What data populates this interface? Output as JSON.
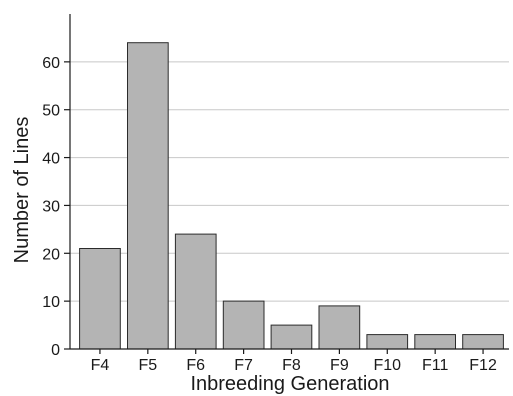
{
  "chart_data": {
    "type": "bar",
    "title": "",
    "xlabel": "Inbreeding Generation",
    "ylabel": "Number of Lines",
    "categories": [
      "F4",
      "F5",
      "F6",
      "F7",
      "F8",
      "F9",
      "F10",
      "F11",
      "F12"
    ],
    "values": [
      21,
      64,
      24,
      10,
      5,
      9,
      3,
      3,
      3
    ],
    "ylim": [
      0,
      70
    ],
    "yticks": [
      0,
      10,
      20,
      30,
      40,
      50,
      60
    ],
    "grid": true,
    "legend": "none",
    "colors": {
      "bar_fill": "#b4b4b4",
      "bar_stroke": "#2b2b2b",
      "grid": "#c8c8c8",
      "axis": "#1a1a1a"
    }
  }
}
